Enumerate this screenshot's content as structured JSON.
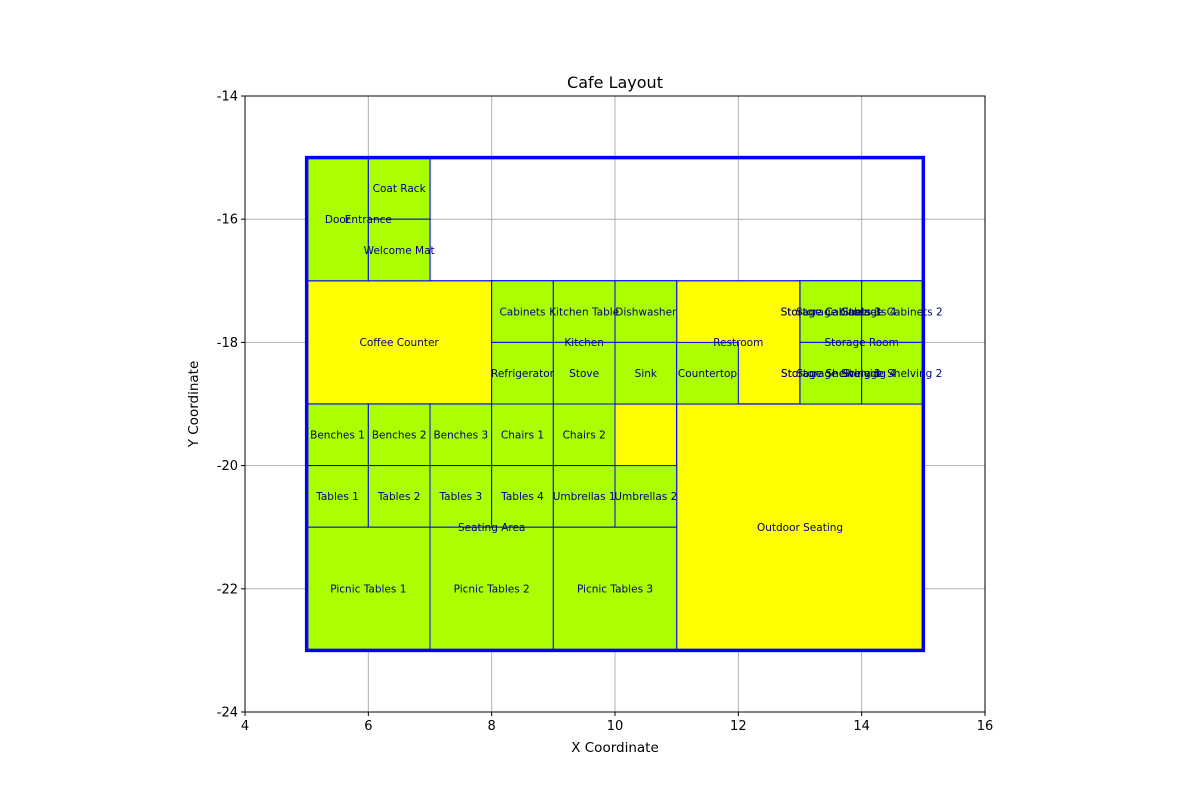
{
  "chart_data": {
    "type": "floor-plan",
    "title": "Cafe Layout",
    "xlabel": "X Coordinate",
    "ylabel": "Y Coordinate",
    "xlim": [
      4,
      16
    ],
    "ylim": [
      -24,
      -14
    ],
    "x_ticks": [
      "4",
      "6",
      "8",
      "10",
      "12",
      "14",
      "16"
    ],
    "y_ticks": [
      "-24",
      "-22",
      "-20",
      "-18",
      "-16",
      "-14"
    ],
    "grid": true,
    "colors": {
      "outline": "#0000ff",
      "area_fill": "#ffff00",
      "item_fill": "#aaff00",
      "label": "#000080",
      "grid": "#b0b0b0"
    },
    "building": {
      "label": "",
      "bounds": [
        5,
        -23,
        15,
        -15
      ]
    },
    "areas": [
      {
        "name": "Entrance",
        "bounds": [
          5,
          -17,
          7,
          -15
        ]
      },
      {
        "name": "Coffee Counter",
        "bounds": [
          5,
          -19,
          8,
          -17
        ]
      },
      {
        "name": "Kitchen",
        "bounds": [
          8,
          -19,
          11,
          -17
        ]
      },
      {
        "name": "Restroom",
        "bounds": [
          11,
          -19,
          13,
          -17
        ]
      },
      {
        "name": "Storage Room",
        "bounds": [
          13,
          -19,
          15,
          -17
        ]
      },
      {
        "name": "Seating Area",
        "bounds": [
          5,
          -23,
          11,
          -19
        ]
      },
      {
        "name": "Outdoor Seating",
        "bounds": [
          11,
          -23,
          15,
          -19
        ]
      }
    ],
    "items": [
      {
        "name": "Door",
        "bounds": [
          5,
          -17,
          6,
          -15
        ]
      },
      {
        "name": "Coat Rack",
        "bounds": [
          6,
          -16,
          7,
          -15
        ]
      },
      {
        "name": "Welcome Mat",
        "bounds": [
          6,
          -17,
          7,
          -16
        ]
      },
      {
        "name": "Cabinets",
        "bounds": [
          8,
          -18,
          9,
          -17
        ]
      },
      {
        "name": "Kitchen Table",
        "bounds": [
          9,
          -18,
          10,
          -17
        ]
      },
      {
        "name": "Dishwasher",
        "bounds": [
          10,
          -18,
          11,
          -17
        ]
      },
      {
        "name": "Refrigerator",
        "bounds": [
          8,
          -19,
          9,
          -18
        ]
      },
      {
        "name": "Stove",
        "bounds": [
          9,
          -19,
          10,
          -18
        ]
      },
      {
        "name": "Sink",
        "bounds": [
          10,
          -19,
          11,
          -18
        ]
      },
      {
        "name": "Countertop",
        "bounds": [
          11,
          -19,
          12,
          -18
        ]
      },
      {
        "name": "Storage Cabinets 1",
        "bounds": [
          13,
          -18,
          14,
          -17
        ]
      },
      {
        "name": "Storage Cabinets 2",
        "bounds": [
          14,
          -18,
          15,
          -17
        ]
      },
      {
        "name": "Storage Shelving 1",
        "bounds": [
          13,
          -19,
          14,
          -18
        ]
      },
      {
        "name": "Storage Shelving 2",
        "bounds": [
          14,
          -19,
          15,
          -18
        ]
      },
      {
        "name": "Benches 1",
        "bounds": [
          5,
          -20,
          6,
          -19
        ]
      },
      {
        "name": "Benches 2",
        "bounds": [
          6,
          -20,
          7,
          -19
        ]
      },
      {
        "name": "Benches 3",
        "bounds": [
          7,
          -20,
          8,
          -19
        ]
      },
      {
        "name": "Chairs 1",
        "bounds": [
          8,
          -20,
          9,
          -19
        ]
      },
      {
        "name": "Chairs 2",
        "bounds": [
          9,
          -20,
          10,
          -19
        ]
      },
      {
        "name": "Tables 1",
        "bounds": [
          5,
          -21,
          6,
          -20
        ]
      },
      {
        "name": "Tables 2",
        "bounds": [
          6,
          -21,
          7,
          -20
        ]
      },
      {
        "name": "Tables 3",
        "bounds": [
          7,
          -21,
          8,
          -20
        ]
      },
      {
        "name": "Tables 4",
        "bounds": [
          8,
          -21,
          9,
          -20
        ]
      },
      {
        "name": "Umbrellas 1",
        "bounds": [
          9,
          -21,
          10,
          -20
        ]
      },
      {
        "name": "Umbrellas 2",
        "bounds": [
          10,
          -21,
          11,
          -20
        ]
      },
      {
        "name": "Picnic Tables 1",
        "bounds": [
          5,
          -23,
          7,
          -21
        ]
      },
      {
        "name": "Picnic Tables 2",
        "bounds": [
          7,
          -23,
          9,
          -21
        ]
      },
      {
        "name": "Picnic Tables 3",
        "bounds": [
          9,
          -23,
          11,
          -21
        ]
      }
    ],
    "overlapping_labels": [
      {
        "text": "Storage Cabinets 3",
        "at": [
          13.5,
          -17.5
        ]
      },
      {
        "text": "Storage Cabinets 4",
        "at": [
          13.75,
          -17.5
        ]
      },
      {
        "text": "Storage Shelving 3",
        "at": [
          13.5,
          -18.5
        ]
      },
      {
        "text": "Storage Shelving 4",
        "at": [
          13.75,
          -18.5
        ]
      }
    ]
  }
}
